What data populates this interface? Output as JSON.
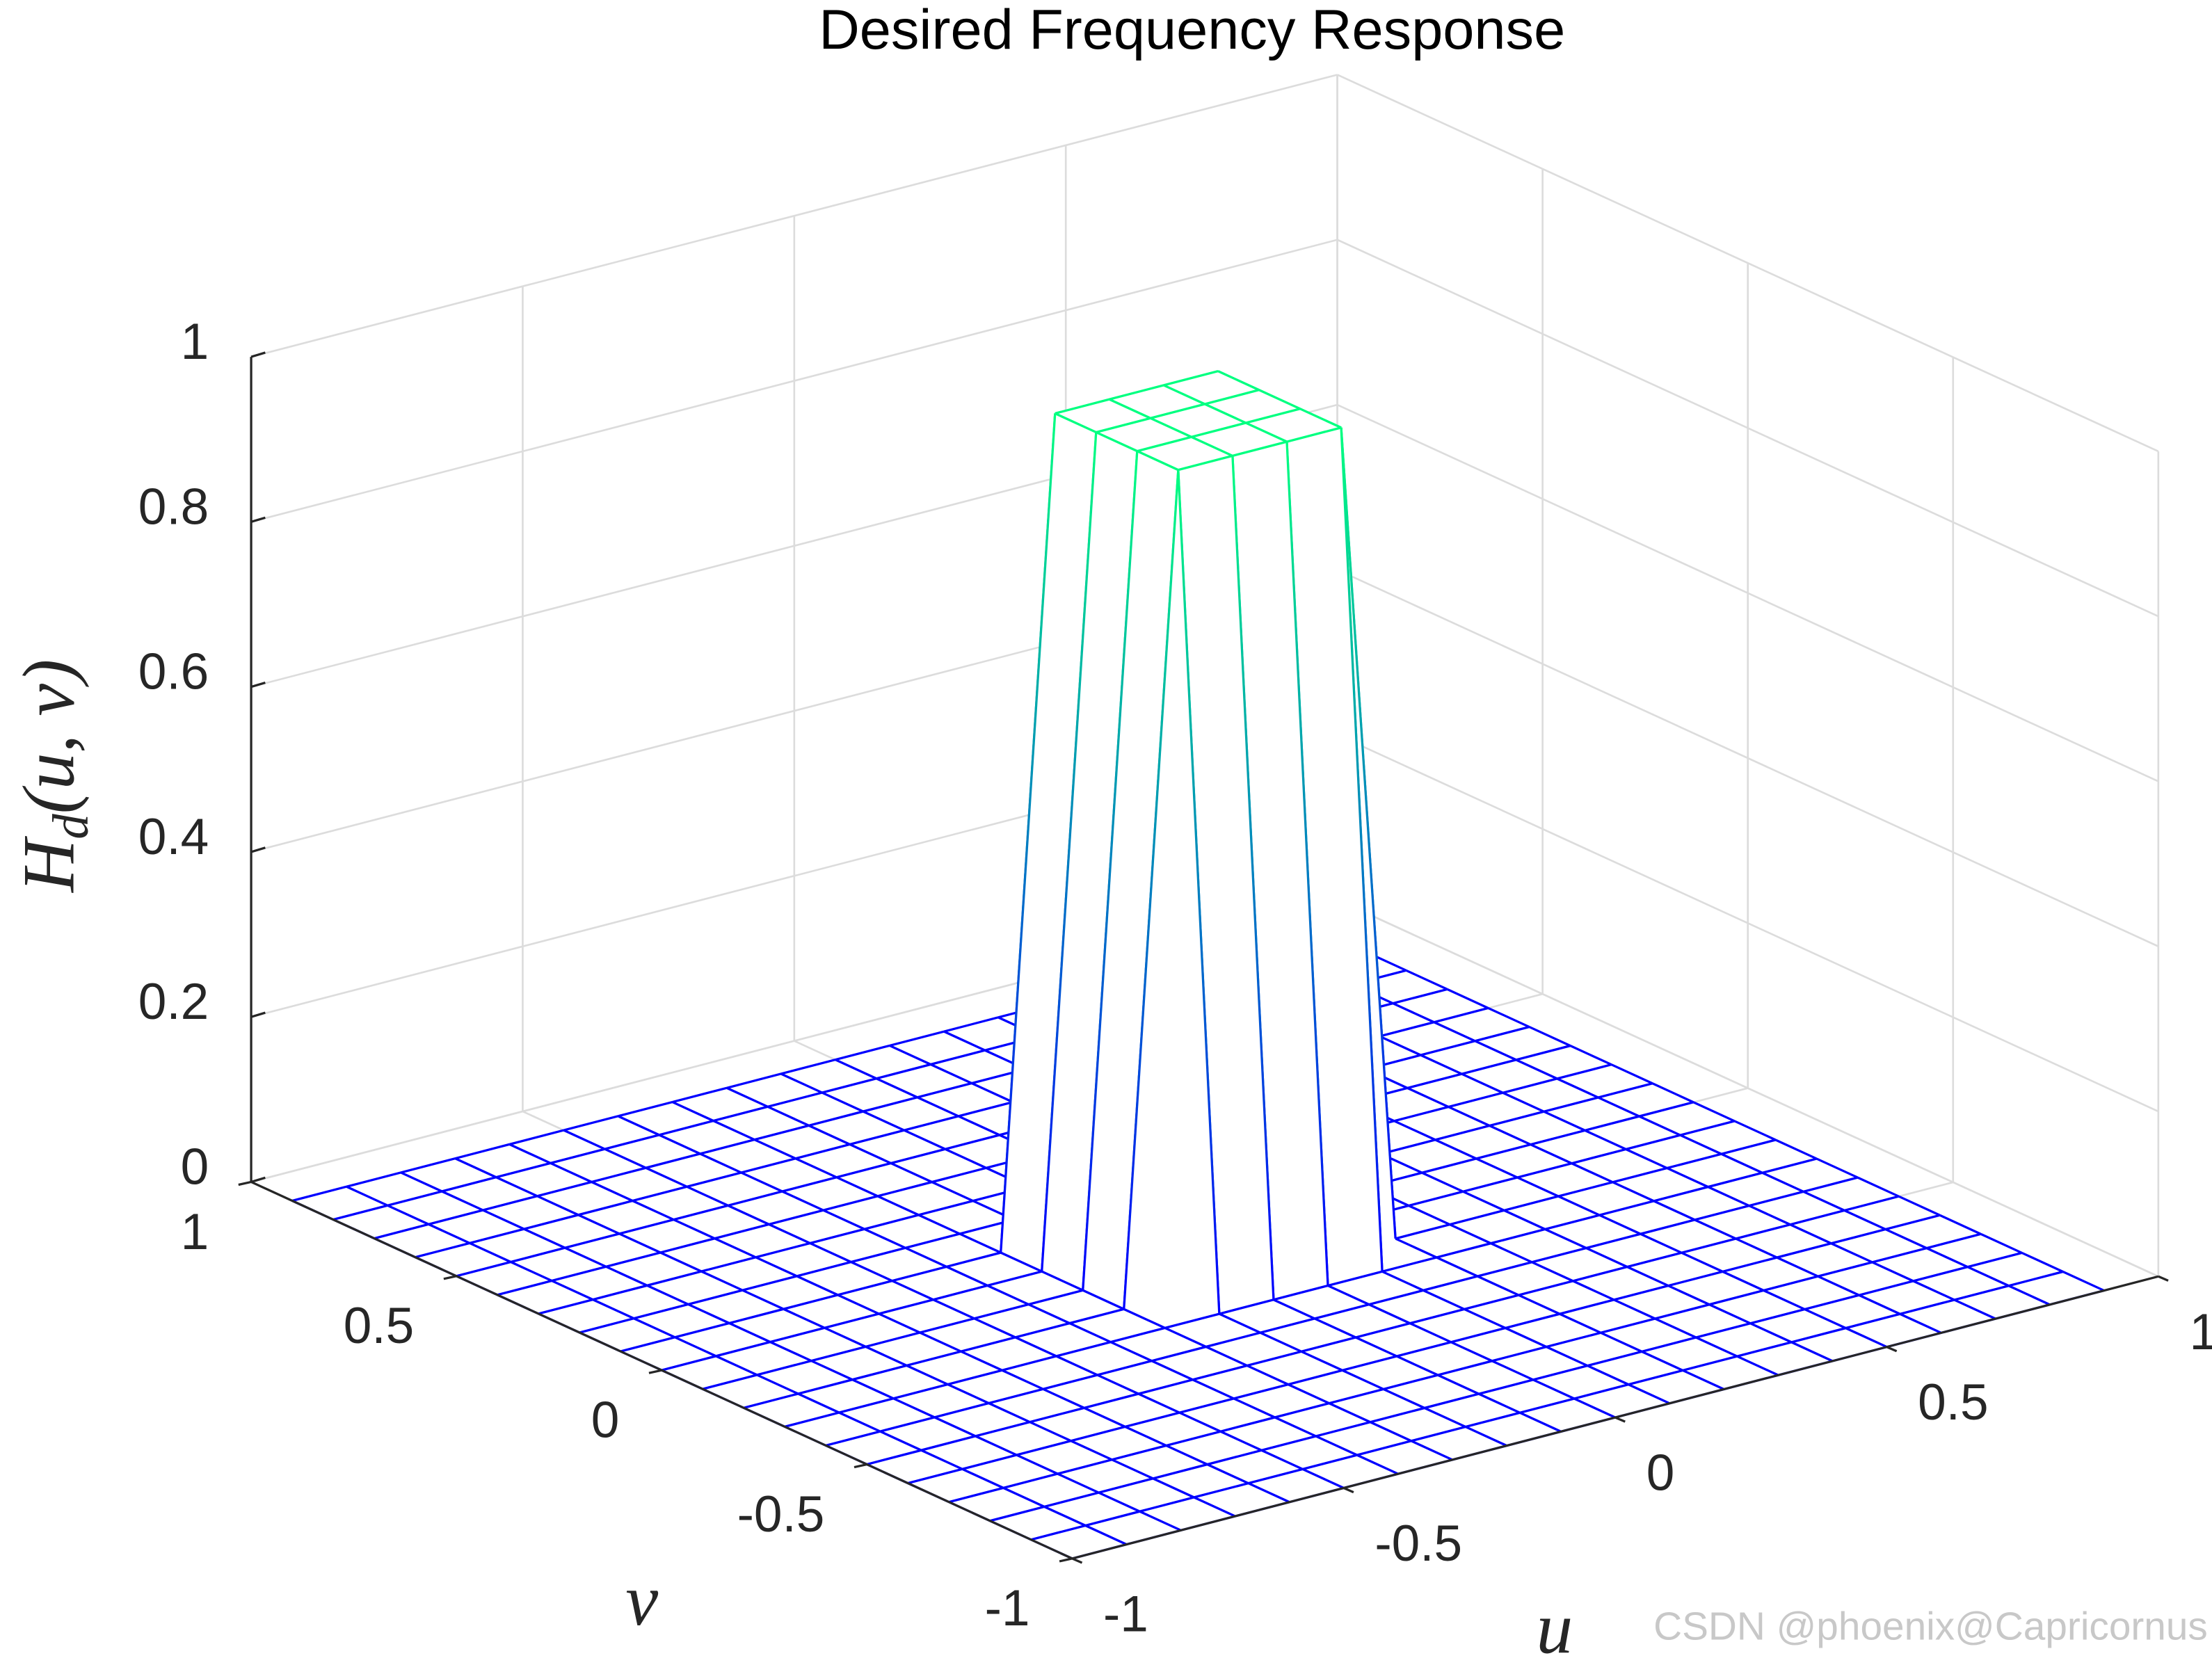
{
  "chart_data": {
    "type": "mesh",
    "title": "Desired Frequency Response",
    "xlabel": "u",
    "ylabel": "v",
    "zlabel": [
      "H",
      "d",
      "(u, v)"
    ],
    "x": [
      -1,
      -0.9,
      -0.8,
      -0.7,
      -0.6,
      -0.5,
      -0.4,
      -0.3,
      -0.2,
      -0.1,
      0,
      0.1,
      0.2,
      0.3,
      0.4,
      0.5,
      0.6,
      0.7,
      0.8,
      0.9
    ],
    "y": [
      -1,
      -0.9,
      -0.8,
      -0.7,
      -0.6,
      -0.5,
      -0.4,
      -0.3,
      -0.2,
      -0.1,
      0,
      0.1,
      0.2,
      0.3,
      0.4,
      0.5,
      0.6,
      0.7,
      0.8,
      0.9
    ],
    "z": [
      [
        0,
        0,
        0,
        0,
        0,
        0,
        0,
        0,
        0,
        0,
        0,
        0,
        0,
        0,
        0,
        0,
        0,
        0,
        0,
        0
      ],
      [
        0,
        0,
        0,
        0,
        0,
        0,
        0,
        0,
        0,
        0,
        0,
        0,
        0,
        0,
        0,
        0,
        0,
        0,
        0,
        0
      ],
      [
        0,
        0,
        0,
        0,
        0,
        0,
        0,
        0,
        0,
        0,
        0,
        0,
        0,
        0,
        0,
        0,
        0,
        0,
        0,
        0
      ],
      [
        0,
        0,
        0,
        0,
        0,
        0,
        0,
        0,
        0,
        0,
        0,
        0,
        0,
        0,
        0,
        0,
        0,
        0,
        0,
        0
      ],
      [
        0,
        0,
        0,
        0,
        0,
        0,
        0,
        0,
        0,
        0,
        0,
        0,
        0,
        0,
        0,
        0,
        0,
        0,
        0,
        0
      ],
      [
        0,
        0,
        0,
        0,
        0,
        0,
        0,
        0,
        0,
        0,
        0,
        0,
        0,
        0,
        0,
        0,
        0,
        0,
        0,
        0
      ],
      [
        0,
        0,
        0,
        0,
        0,
        0,
        0,
        0,
        0,
        0,
        0,
        0,
        0,
        0,
        0,
        0,
        0,
        0,
        0,
        0
      ],
      [
        0,
        0,
        0,
        0,
        0,
        0,
        0,
        0,
        0,
        0,
        0,
        0,
        0,
        0,
        0,
        0,
        0,
        0,
        0,
        0
      ],
      [
        0,
        0,
        0,
        0,
        0,
        0,
        0,
        0,
        1,
        1,
        1,
        1,
        0,
        0,
        0,
        0,
        0,
        0,
        0,
        0
      ],
      [
        0,
        0,
        0,
        0,
        0,
        0,
        0,
        0,
        1,
        1,
        1,
        1,
        0,
        0,
        0,
        0,
        0,
        0,
        0,
        0
      ],
      [
        0,
        0,
        0,
        0,
        0,
        0,
        0,
        0,
        1,
        1,
        1,
        1,
        0,
        0,
        0,
        0,
        0,
        0,
        0,
        0
      ],
      [
        0,
        0,
        0,
        0,
        0,
        0,
        0,
        0,
        1,
        1,
        1,
        1,
        0,
        0,
        0,
        0,
        0,
        0,
        0,
        0
      ],
      [
        0,
        0,
        0,
        0,
        0,
        0,
        0,
        0,
        0,
        0,
        0,
        0,
        0,
        0,
        0,
        0,
        0,
        0,
        0,
        0
      ],
      [
        0,
        0,
        0,
        0,
        0,
        0,
        0,
        0,
        0,
        0,
        0,
        0,
        0,
        0,
        0,
        0,
        0,
        0,
        0,
        0
      ],
      [
        0,
        0,
        0,
        0,
        0,
        0,
        0,
        0,
        0,
        0,
        0,
        0,
        0,
        0,
        0,
        0,
        0,
        0,
        0,
        0
      ],
      [
        0,
        0,
        0,
        0,
        0,
        0,
        0,
        0,
        0,
        0,
        0,
        0,
        0,
        0,
        0,
        0,
        0,
        0,
        0,
        0
      ],
      [
        0,
        0,
        0,
        0,
        0,
        0,
        0,
        0,
        0,
        0,
        0,
        0,
        0,
        0,
        0,
        0,
        0,
        0,
        0,
        0
      ],
      [
        0,
        0,
        0,
        0,
        0,
        0,
        0,
        0,
        0,
        0,
        0,
        0,
        0,
        0,
        0,
        0,
        0,
        0,
        0,
        0
      ],
      [
        0,
        0,
        0,
        0,
        0,
        0,
        0,
        0,
        0,
        0,
        0,
        0,
        0,
        0,
        0,
        0,
        0,
        0,
        0,
        0
      ],
      [
        0,
        0,
        0,
        0,
        0,
        0,
        0,
        0,
        0,
        0,
        0,
        0,
        0,
        0,
        0,
        0,
        0,
        0,
        0,
        0
      ]
    ],
    "colormap": [
      "#0000ff",
      "#00ff80"
    ],
    "xlim": [
      -1,
      1
    ],
    "ylim": [
      -1,
      1
    ],
    "zlim": [
      0,
      1
    ],
    "xticks": [
      -1,
      -0.5,
      0,
      0.5,
      1
    ],
    "yticks": [
      -1,
      -0.5,
      0,
      0.5,
      1
    ],
    "zticks": [
      0,
      0.2,
      0.4,
      0.6,
      0.8,
      1
    ],
    "grid": true,
    "watermark": "CSDN @phoenix@Capricornus"
  }
}
